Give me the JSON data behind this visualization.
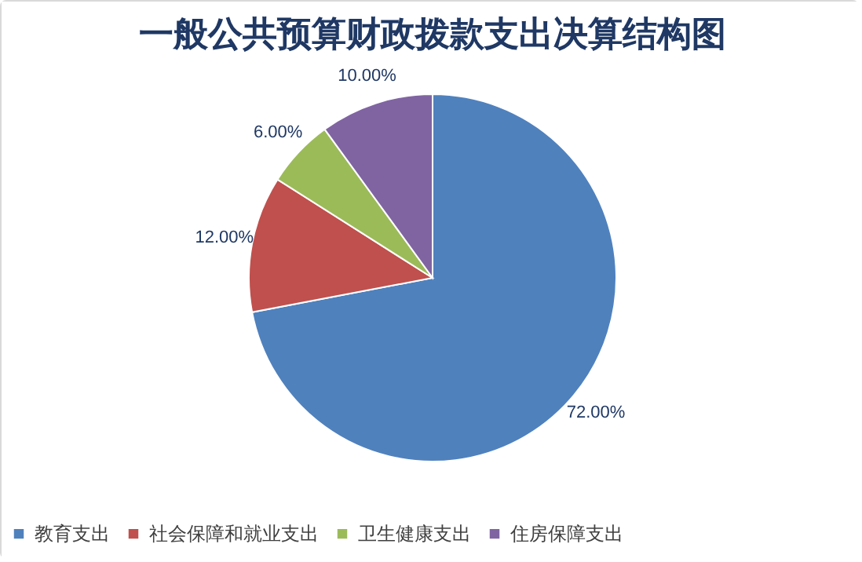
{
  "chart_data": {
    "type": "pie",
    "title": "一般公共预算财政拨款支出决算结构图",
    "categories": [
      "教育支出",
      "社会保障和就业支出",
      "卫生健康支出",
      "住房保障支出"
    ],
    "values": [
      72,
      12,
      6,
      10
    ],
    "colors": [
      "#4f81bd",
      "#c0504d",
      "#9bbb59",
      "#8064a2"
    ],
    "value_labels": [
      "72.00%",
      "12.00%",
      "6.00%",
      "10.00%"
    ],
    "legend": "bottom"
  }
}
